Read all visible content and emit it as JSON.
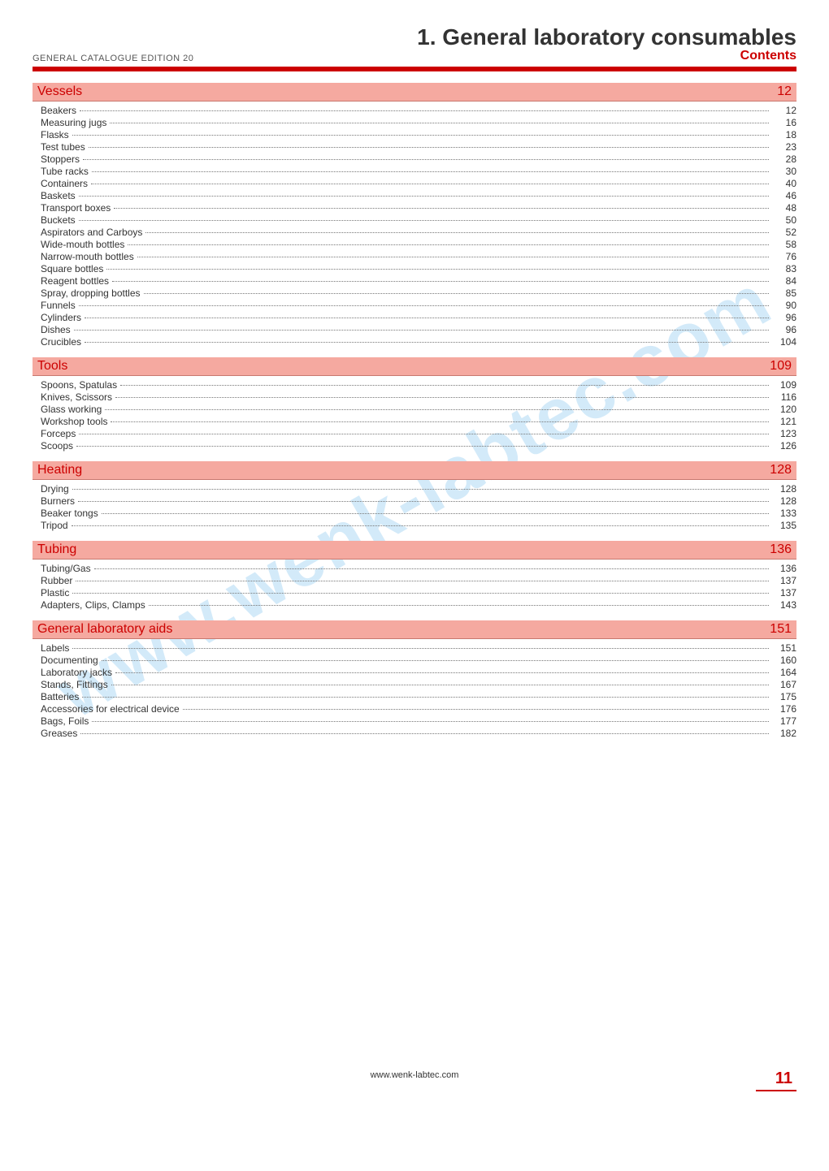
{
  "header": {
    "left": "GENERAL CATALOGUE EDITION 20",
    "title": "1. General laboratory consumables",
    "subtitle": "Contents"
  },
  "sections": [
    {
      "title": "Vessels",
      "page": "12",
      "items": [
        {
          "label": "Beakers",
          "page": "12"
        },
        {
          "label": "Measuring jugs",
          "page": "16"
        },
        {
          "label": "Flasks",
          "page": "18"
        },
        {
          "label": "Test tubes",
          "page": "23"
        },
        {
          "label": "Stoppers",
          "page": "28"
        },
        {
          "label": "Tube racks",
          "page": "30"
        },
        {
          "label": "Containers",
          "page": "40"
        },
        {
          "label": "Baskets",
          "page": "46"
        },
        {
          "label": "Transport boxes",
          "page": "48"
        },
        {
          "label": "Buckets",
          "page": "50"
        },
        {
          "label": "Aspirators and Carboys",
          "page": "52"
        },
        {
          "label": "Wide-mouth bottles",
          "page": "58"
        },
        {
          "label": "Narrow-mouth bottles",
          "page": "76"
        },
        {
          "label": "Square bottles",
          "page": "83"
        },
        {
          "label": "Reagent bottles",
          "page": "84"
        },
        {
          "label": "Spray, dropping bottles",
          "page": "85"
        },
        {
          "label": "Funnels",
          "page": "90"
        },
        {
          "label": "Cylinders",
          "page": "96"
        },
        {
          "label": "Dishes",
          "page": "96"
        },
        {
          "label": "Crucibles",
          "page": "104"
        }
      ]
    },
    {
      "title": "Tools",
      "page": "109",
      "items": [
        {
          "label": "Spoons, Spatulas",
          "page": "109"
        },
        {
          "label": "Knives, Scissors",
          "page": "116"
        },
        {
          "label": "Glass working",
          "page": "120"
        },
        {
          "label": "Workshop tools",
          "page": "121"
        },
        {
          "label": "Forceps",
          "page": "123"
        },
        {
          "label": "Scoops",
          "page": "126"
        }
      ]
    },
    {
      "title": "Heating",
      "page": "128",
      "items": [
        {
          "label": "Drying",
          "page": "128"
        },
        {
          "label": "Burners",
          "page": "128"
        },
        {
          "label": "Beaker tongs",
          "page": "133"
        },
        {
          "label": "Tripod",
          "page": "135"
        }
      ]
    },
    {
      "title": "Tubing",
      "page": "136",
      "items": [
        {
          "label": "Tubing/Gas",
          "page": "136"
        },
        {
          "label": "Rubber",
          "page": "137"
        },
        {
          "label": "Plastic",
          "page": "137"
        },
        {
          "label": "Adapters, Clips, Clamps",
          "page": "143"
        }
      ]
    },
    {
      "title": "General laboratory aids",
      "page": "151",
      "items": [
        {
          "label": "Labels",
          "page": "151"
        },
        {
          "label": "Documenting",
          "page": "160"
        },
        {
          "label": "Laboratory jacks",
          "page": "164"
        },
        {
          "label": "Stands, Fittings",
          "page": "167"
        },
        {
          "label": "Batteries",
          "page": "175"
        },
        {
          "label": "Accessories for electrical device",
          "page": "176"
        },
        {
          "label": "Bags, Foils",
          "page": "177"
        },
        {
          "label": "Greases",
          "page": "182"
        }
      ]
    }
  ],
  "watermark": "www.wenk-labtec.com",
  "footer": "www.wenk-labtec.com",
  "page_number": "11",
  "colors": {
    "accent": "#c00",
    "section_bg": "#f5a9a0",
    "section_border": "#c8786f",
    "watermark": "rgba(80,170,230,0.25)"
  }
}
